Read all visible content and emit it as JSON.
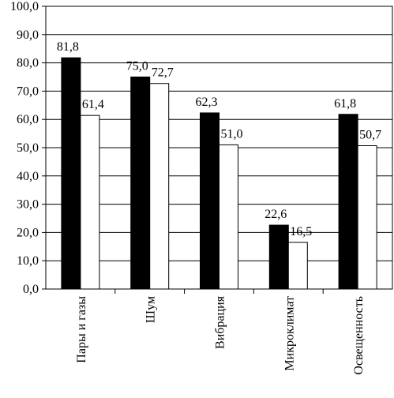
{
  "chart_data": {
    "type": "bar",
    "categories": [
      "Пары и газы",
      "Шум",
      "Вибрация",
      "Микроклимат",
      "Освещенность"
    ],
    "series": [
      {
        "color": "#000000",
        "values": [
          81.8,
          75.0,
          62.3,
          22.6,
          61.8
        ]
      },
      {
        "color": "#ffffff",
        "values": [
          61.4,
          72.7,
          51.0,
          16.5,
          50.7
        ]
      }
    ],
    "value_labels": [
      [
        "81,8",
        "75,0",
        "62,3",
        "22,6",
        "61,8"
      ],
      [
        "61,4",
        "72,7",
        "51,0",
        "16,5",
        "50,7"
      ]
    ],
    "y_ticks": [
      "0,0",
      "10,0",
      "20,0",
      "30,0",
      "40,0",
      "50,0",
      "60,0",
      "70,0",
      "80,0",
      "90,0",
      "100,0"
    ],
    "ylim": [
      0,
      100
    ],
    "ystep": 10,
    "grid": true,
    "title": "",
    "xlabel": "",
    "ylabel": ""
  }
}
